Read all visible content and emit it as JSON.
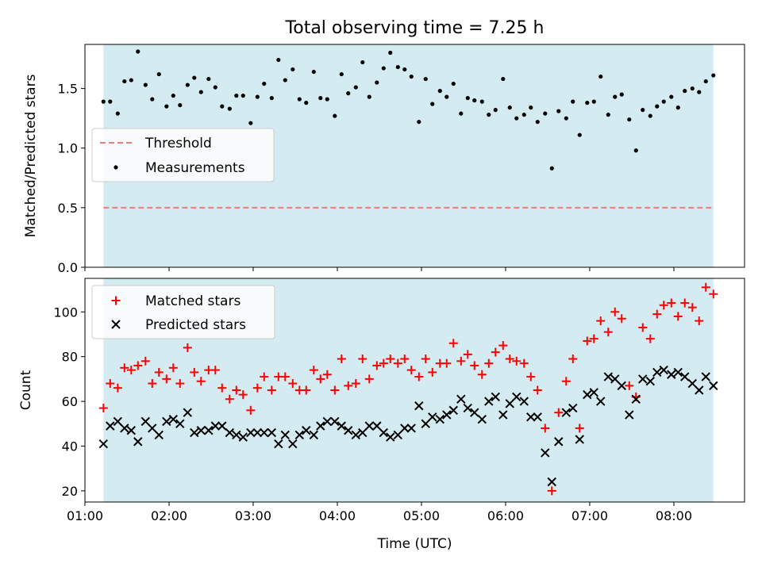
{
  "chart_data": [
    {
      "type": "scatter",
      "title": "Total observing time = 7.25 h",
      "ylabel": "Matched/Predicted stars",
      "xlabel": "",
      "xlim": [
        1.0,
        8.84
      ],
      "ylim": [
        0.0,
        1.87
      ],
      "x_ticks": [
        1,
        2,
        3,
        4,
        5,
        6,
        7,
        8
      ],
      "x_tick_labels": [],
      "y_ticks": [
        0.0,
        0.5,
        1.0,
        1.5
      ],
      "y_tick_labels": [
        "0.0",
        "0.5",
        "1.0",
        "1.5"
      ],
      "shaded_span": {
        "x_start": 1.22,
        "x_end": 8.47,
        "color": "#d4ebf1"
      },
      "legend_position": "center-left",
      "series": [
        {
          "name": "Threshold",
          "kind": "line",
          "style": "dashed",
          "color": "#f07c7c",
          "x": [
            1.22,
            8.47
          ],
          "y": [
            0.5,
            0.5
          ]
        },
        {
          "name": "Measurements",
          "kind": "scatter",
          "marker": "dot",
          "color": "#000000",
          "x": [
            1.22,
            1.3,
            1.39,
            1.47,
            1.55,
            1.63,
            1.72,
            1.8,
            1.88,
            1.97,
            2.05,
            2.13,
            2.22,
            2.3,
            2.38,
            2.47,
            2.55,
            2.63,
            2.72,
            2.8,
            2.88,
            2.97,
            3.05,
            3.13,
            3.22,
            3.3,
            3.38,
            3.47,
            3.55,
            3.63,
            3.72,
            3.8,
            3.88,
            3.97,
            4.05,
            4.13,
            4.22,
            4.3,
            4.38,
            4.47,
            4.55,
            4.63,
            4.72,
            4.8,
            4.88,
            4.97,
            5.05,
            5.13,
            5.22,
            5.3,
            5.38,
            5.47,
            5.55,
            5.63,
            5.72,
            5.8,
            5.88,
            5.97,
            6.05,
            6.13,
            6.22,
            6.3,
            6.38,
            6.47,
            6.55,
            6.63,
            6.72,
            6.8,
            6.88,
            6.97,
            7.05,
            7.13,
            7.22,
            7.3,
            7.38,
            7.47,
            7.55,
            7.63,
            7.72,
            7.8,
            7.88,
            7.97,
            8.05,
            8.13,
            8.22,
            8.3,
            8.38,
            8.47
          ],
          "y": [
            1.39,
            1.39,
            1.29,
            1.56,
            1.57,
            1.81,
            1.53,
            1.41,
            1.62,
            1.35,
            1.44,
            1.36,
            1.53,
            1.59,
            1.47,
            1.58,
            1.51,
            1.35,
            1.33,
            1.44,
            1.44,
            1.21,
            1.43,
            1.54,
            1.42,
            1.74,
            1.57,
            1.66,
            1.41,
            1.38,
            1.64,
            1.42,
            1.41,
            1.27,
            1.62,
            1.46,
            1.51,
            1.72,
            1.43,
            1.55,
            1.67,
            1.8,
            1.68,
            1.66,
            1.6,
            1.22,
            1.58,
            1.37,
            1.48,
            1.43,
            1.54,
            1.29,
            1.42,
            1.4,
            1.39,
            1.28,
            1.32,
            1.58,
            1.34,
            1.25,
            1.28,
            1.34,
            1.22,
            1.29,
            0.83,
            1.31,
            1.25,
            1.39,
            1.11,
            1.38,
            1.39,
            1.6,
            1.28,
            1.43,
            1.45,
            1.24,
            0.98,
            1.32,
            1.27,
            1.35,
            1.39,
            1.43,
            1.34,
            1.48,
            1.5,
            1.47,
            1.56,
            1.61
          ]
        }
      ]
    },
    {
      "type": "scatter",
      "title": "",
      "ylabel": "Count",
      "xlabel": "Time (UTC)",
      "xlim": [
        1.0,
        8.84
      ],
      "ylim": [
        15,
        115
      ],
      "x_ticks": [
        1,
        2,
        3,
        4,
        5,
        6,
        7,
        8
      ],
      "x_tick_labels": [
        "01:00",
        "02:00",
        "03:00",
        "04:00",
        "05:00",
        "06:00",
        "07:00",
        "08:00"
      ],
      "y_ticks": [
        20,
        40,
        60,
        80,
        100
      ],
      "y_tick_labels": [
        "20",
        "40",
        "60",
        "80",
        "100"
      ],
      "shaded_span": {
        "x_start": 1.22,
        "x_end": 8.47,
        "color": "#d4ebf1"
      },
      "legend_position": "upper-left",
      "series": [
        {
          "name": "Matched stars",
          "kind": "scatter",
          "marker": "plus",
          "color": "#ff0000",
          "x": [
            1.22,
            1.3,
            1.39,
            1.47,
            1.55,
            1.63,
            1.72,
            1.8,
            1.88,
            1.97,
            2.05,
            2.13,
            2.22,
            2.3,
            2.38,
            2.47,
            2.55,
            2.63,
            2.72,
            2.8,
            2.88,
            2.97,
            3.05,
            3.13,
            3.22,
            3.3,
            3.38,
            3.47,
            3.55,
            3.63,
            3.72,
            3.8,
            3.88,
            3.97,
            4.05,
            4.13,
            4.22,
            4.3,
            4.38,
            4.47,
            4.55,
            4.63,
            4.72,
            4.8,
            4.88,
            4.97,
            5.05,
            5.13,
            5.22,
            5.3,
            5.38,
            5.47,
            5.55,
            5.63,
            5.72,
            5.8,
            5.88,
            5.97,
            6.05,
            6.13,
            6.22,
            6.3,
            6.38,
            6.47,
            6.55,
            6.63,
            6.72,
            6.8,
            6.88,
            6.97,
            7.05,
            7.13,
            7.22,
            7.3,
            7.38,
            7.47,
            7.55,
            7.63,
            7.72,
            7.8,
            7.88,
            7.97,
            8.05,
            8.13,
            8.22,
            8.3,
            8.38,
            8.47
          ],
          "y": [
            57,
            68,
            66,
            75,
            74,
            76,
            78,
            68,
            73,
            70,
            75,
            68,
            84,
            73,
            69,
            74,
            74,
            66,
            61,
            65,
            63,
            56,
            66,
            71,
            65,
            71,
            71,
            68,
            65,
            65,
            74,
            70,
            72,
            65,
            79,
            67,
            68,
            79,
            70,
            76,
            77,
            79,
            77,
            79,
            74,
            71,
            79,
            73,
            77,
            77,
            86,
            78,
            81,
            76,
            72,
            77,
            82,
            85,
            79,
            78,
            77,
            71,
            65,
            48,
            20,
            55,
            69,
            79,
            48,
            87,
            88,
            96,
            91,
            100,
            97,
            67,
            62,
            93,
            88,
            99,
            103,
            104,
            98,
            104,
            102,
            96,
            111,
            108
          ]
        },
        {
          "name": "Predicted stars",
          "kind": "scatter",
          "marker": "x",
          "color": "#000000",
          "x": [
            1.22,
            1.3,
            1.39,
            1.47,
            1.55,
            1.63,
            1.72,
            1.8,
            1.88,
            1.97,
            2.05,
            2.13,
            2.22,
            2.3,
            2.38,
            2.47,
            2.55,
            2.63,
            2.72,
            2.8,
            2.88,
            2.97,
            3.05,
            3.13,
            3.22,
            3.3,
            3.38,
            3.47,
            3.55,
            3.63,
            3.72,
            3.8,
            3.88,
            3.97,
            4.05,
            4.13,
            4.22,
            4.3,
            4.38,
            4.47,
            4.55,
            4.63,
            4.72,
            4.8,
            4.88,
            4.97,
            5.05,
            5.13,
            5.22,
            5.3,
            5.38,
            5.47,
            5.55,
            5.63,
            5.72,
            5.8,
            5.88,
            5.97,
            6.05,
            6.13,
            6.22,
            6.3,
            6.38,
            6.47,
            6.55,
            6.63,
            6.72,
            6.8,
            6.88,
            6.97,
            7.05,
            7.13,
            7.22,
            7.3,
            7.38,
            7.47,
            7.55,
            7.63,
            7.72,
            7.8,
            7.88,
            7.97,
            8.05,
            8.13,
            8.22,
            8.3,
            8.38,
            8.47
          ],
          "y": [
            41,
            49,
            51,
            48,
            47,
            42,
            51,
            48,
            45,
            51,
            52,
            50,
            55,
            46,
            47,
            47,
            49,
            49,
            46,
            45,
            44,
            46,
            46,
            46,
            46,
            41,
            45,
            41,
            45,
            47,
            45,
            49,
            51,
            51,
            49,
            47,
            45,
            46,
            49,
            49,
            46,
            44,
            45,
            48,
            48,
            58,
            50,
            53,
            52,
            54,
            56,
            61,
            57,
            55,
            52,
            60,
            62,
            54,
            59,
            62,
            60,
            53,
            53,
            37,
            24,
            42,
            55,
            57,
            43,
            63,
            64,
            60,
            71,
            70,
            67,
            54,
            61,
            70,
            69,
            73,
            74,
            72,
            73,
            71,
            68,
            65,
            71,
            67
          ]
        }
      ]
    }
  ]
}
